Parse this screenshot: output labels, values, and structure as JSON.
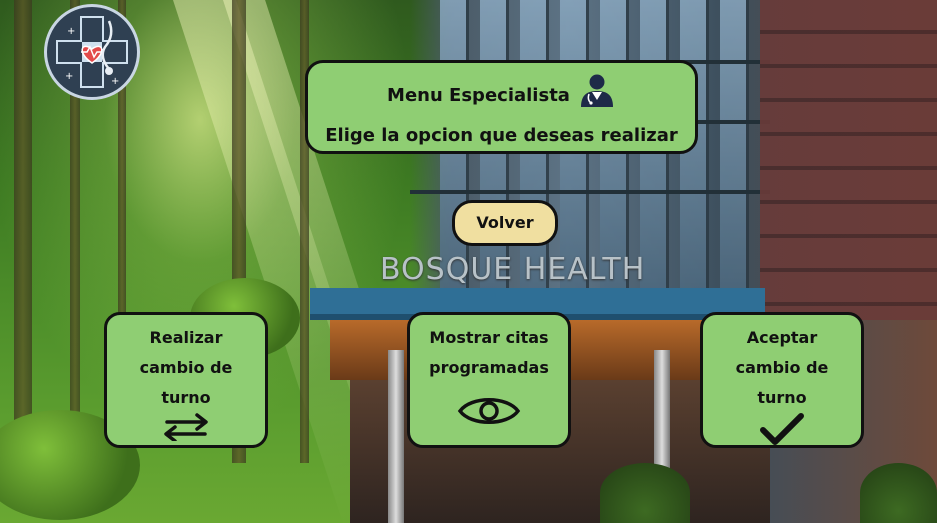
{
  "header": {
    "title": "Menu Especialista",
    "subtitle": "Elige la opcion que deseas realizar",
    "icon": "doctor-icon"
  },
  "back_button": {
    "label": "Volver"
  },
  "background": {
    "sign_text": "BOSQUE HEALTH"
  },
  "logo": {
    "icon": "medical-cross-stethoscope-logo"
  },
  "options": [
    {
      "label_lines": [
        "Realizar",
        "cambio de",
        "turno"
      ],
      "icon": "swap-arrows-icon"
    },
    {
      "label_lines": [
        "Mostrar citas",
        "programadas"
      ],
      "icon": "eye-icon"
    },
    {
      "label_lines": [
        "Aceptar",
        "cambio de",
        "turno"
      ],
      "icon": "check-icon"
    }
  ],
  "colors": {
    "card": "#8fce73",
    "volver": "#f0dfa0",
    "border": "#111111"
  }
}
